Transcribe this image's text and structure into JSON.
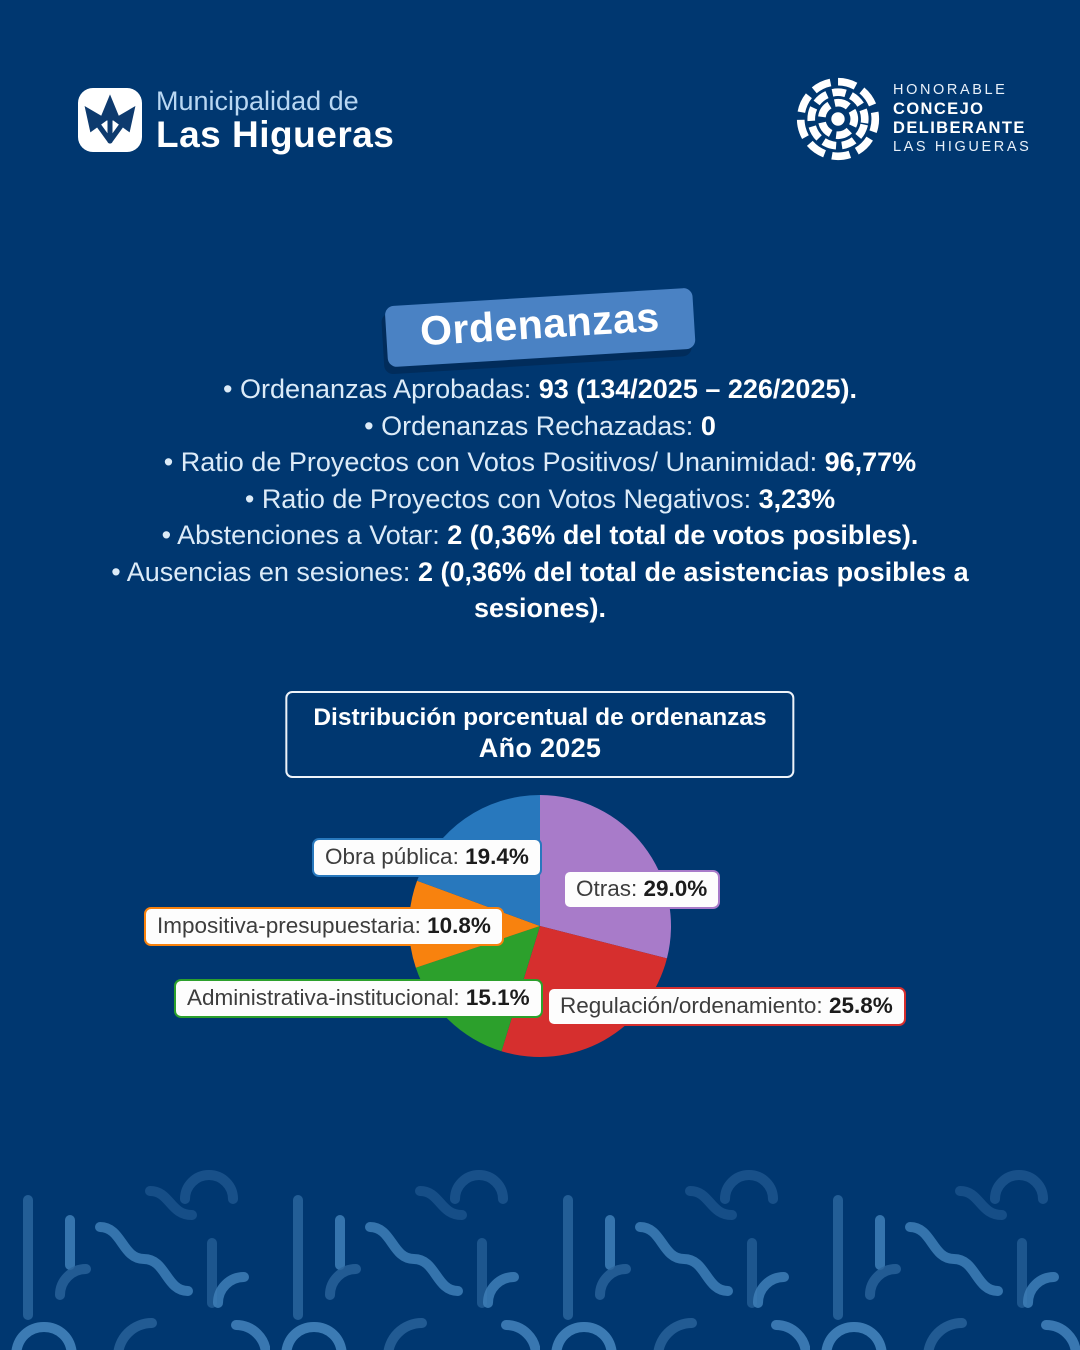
{
  "ui": {
    "bullet": "•"
  },
  "header": {
    "municipality": {
      "line1": "Municipalidad de",
      "line2": "Las Higueras"
    },
    "council": {
      "line1": "HONORABLE",
      "line2": "CONCEJO",
      "line3": "DELIBERANTE",
      "line4": "LAS HIGUERAS"
    }
  },
  "banner": {
    "title": "Ordenanzas"
  },
  "stats": [
    {
      "label": "Ordenanzas Aprobadas: ",
      "value": "93 (134/2025 – 226/2025)."
    },
    {
      "label": "Ordenanzas Rechazadas: ",
      "value": "0"
    },
    {
      "label": "Ratio de Proyectos con Votos Positivos/ Unanimidad: ",
      "value": "96,77%"
    },
    {
      "label": "Ratio de Proyectos con Votos Negativos: ",
      "value": "3,23%"
    },
    {
      "label": "Abstenciones a Votar: ",
      "value": "2 (0,36% del total de votos posibles)."
    },
    {
      "label": "Ausencias en sesiones: ",
      "value": "2 (0,36% del total de asistencias posibles a sesiones)."
    }
  ],
  "chart_title": {
    "line1": "Distribución porcentual de ordenanzas",
    "line2": "Año 2025"
  },
  "chart_data": {
    "type": "pie",
    "title": "Distribución porcentual de ordenanzas — Año 2025",
    "start_angle": "12 o'clock",
    "direction": "clockwise",
    "legend_position": "callout labels around pie",
    "slices": [
      {
        "label": "Otras",
        "callout": "Otras: ",
        "value": 29.0,
        "pct_label": "29.0%",
        "color": "#a87bc9"
      },
      {
        "label": "Regulación/ordenamiento",
        "callout": "Regulación/ordenamiento: ",
        "value": 25.8,
        "pct_label": "25.8%",
        "color": "#d62f2e"
      },
      {
        "label": "Administrativa-institucional",
        "callout": "Administrativa-institucional: ",
        "value": 15.1,
        "pct_label": "15.1%",
        "color": "#2ca02c"
      },
      {
        "label": "Impositiva-presupuestaria",
        "callout": "Impositiva-presupuestaria: ",
        "value": 10.8,
        "pct_label": "10.8%",
        "color": "#f8820e"
      },
      {
        "label": "Obra pública",
        "callout": "Obra pública: ",
        "value": 19.4,
        "pct_label": "19.4%",
        "color": "#2878bd"
      }
    ]
  }
}
